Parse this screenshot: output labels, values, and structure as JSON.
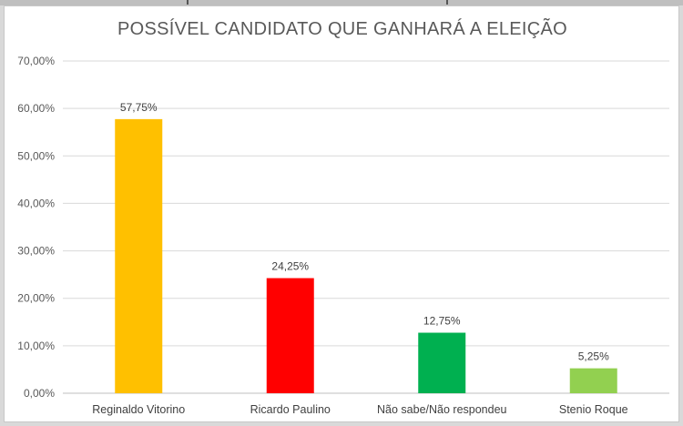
{
  "chart_data": {
    "type": "bar",
    "title": "POSSÍVEL CANDIDATO QUE GANHARÁ A ELEIÇÃO",
    "xlabel": "",
    "ylabel": "",
    "ylim": [
      0,
      70
    ],
    "y_ticks": [
      "0,00%",
      "10,00%",
      "20,00%",
      "30,00%",
      "40,00%",
      "50,00%",
      "60,00%",
      "70,00%"
    ],
    "grid": true,
    "legend": "none",
    "categories": [
      "Reginaldo Vitorino",
      "Ricardo Paulino",
      "Não sabe/Não respondeu",
      "Stenio Roque"
    ],
    "values": [
      57.75,
      24.25,
      12.75,
      5.25
    ],
    "data_labels": [
      "57,75%",
      "24,25%",
      "12,75%",
      "5,25%"
    ],
    "colors": [
      "#ffc000",
      "#ff0000",
      "#00b050",
      "#92d050"
    ]
  }
}
